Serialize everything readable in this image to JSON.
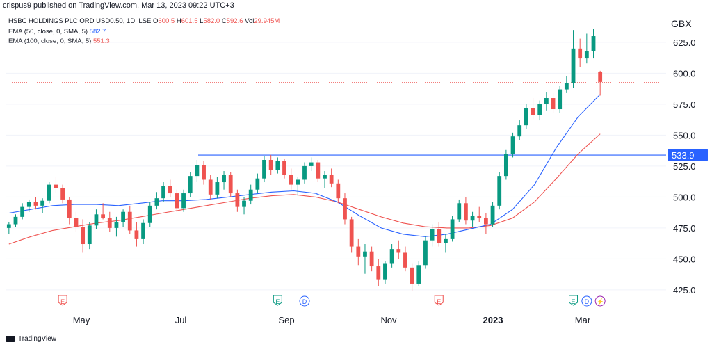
{
  "header": {
    "publish_text": "crispus9 published on TradingView.com, Mar 13, 2023 09:22 UTC+3"
  },
  "legend": {
    "title": "HSBC HOLDINGS PLC ORD USD0.50, 1D, LSE",
    "o_label": "O",
    "o": "600.5",
    "h_label": "H",
    "h": "601.5",
    "l_label": "L",
    "l": "582.0",
    "c_label": "C",
    "c": "592.6",
    "vol_label": "Vol",
    "vol": "29.945M",
    "ema50_label": "EMA (50, close, 0, SMA, 5)",
    "ema50_value": "582.7",
    "ema100_label": "EMA (100, close, 0, SMA, 5)",
    "ema100_value": "551.3"
  },
  "currency": "GBX",
  "footer": {
    "brand": "TradingView"
  },
  "colors": {
    "up": "#089981",
    "down": "#ef5350",
    "ema50": "#2962ff",
    "ema100": "#ef5350",
    "hline": "#2962ff"
  },
  "chart_data": {
    "type": "candlestick",
    "ylim": [
      412,
      648
    ],
    "y_ticks": [
      425,
      450,
      475,
      500,
      525,
      550,
      575,
      600,
      625
    ],
    "y_tick_labels": [
      "425.0",
      "450.0",
      "475.0",
      "500.0",
      "525.0",
      "550.0",
      "575.0",
      "600.0",
      "625.0"
    ],
    "x_labels": [
      {
        "label": "May",
        "bold": false
      },
      {
        "label": "Jul",
        "bold": false
      },
      {
        "label": "Sep",
        "bold": false
      },
      {
        "label": "Nov",
        "bold": false
      },
      {
        "label": "2023",
        "bold": true
      },
      {
        "label": "Mar",
        "bold": false
      }
    ],
    "horizontal_line": {
      "value": 533.9,
      "label": "533.9"
    },
    "last_price_line": 592.6,
    "ema50": [
      487,
      490,
      493,
      494,
      494,
      493,
      495,
      497,
      497,
      498,
      500,
      502,
      504,
      505,
      503,
      496,
      485,
      475,
      470,
      468,
      470,
      474,
      478,
      490,
      510,
      540,
      565,
      583
    ],
    "ema100": [
      462,
      468,
      473,
      476,
      479,
      481,
      484,
      487,
      490,
      493,
      496,
      499,
      501,
      502,
      500,
      496,
      490,
      484,
      479,
      476,
      475,
      475,
      477,
      483,
      496,
      515,
      535,
      551
    ],
    "ohlc": [
      [
        475,
        480,
        470,
        478
      ],
      [
        478,
        486,
        476,
        484
      ],
      [
        484,
        495,
        482,
        492
      ],
      [
        492,
        498,
        488,
        496
      ],
      [
        496,
        500,
        490,
        493
      ],
      [
        493,
        499,
        487,
        497
      ],
      [
        497,
        512,
        495,
        510
      ],
      [
        510,
        516,
        503,
        507
      ],
      [
        507,
        510,
        495,
        498
      ],
      [
        498,
        500,
        478,
        483
      ],
      [
        483,
        488,
        472,
        476
      ],
      [
        476,
        482,
        455,
        462
      ],
      [
        462,
        480,
        458,
        477
      ],
      [
        477,
        490,
        474,
        486
      ],
      [
        486,
        495,
        482,
        483
      ],
      [
        483,
        488,
        472,
        475
      ],
      [
        475,
        484,
        468,
        480
      ],
      [
        480,
        490,
        476,
        488
      ],
      [
        488,
        493,
        470,
        473
      ],
      [
        473,
        480,
        460,
        466
      ],
      [
        466,
        482,
        462,
        479
      ],
      [
        479,
        496,
        476,
        493
      ],
      [
        493,
        504,
        490,
        499
      ],
      [
        499,
        512,
        496,
        509
      ],
      [
        509,
        514,
        500,
        503
      ],
      [
        503,
        506,
        488,
        491
      ],
      [
        491,
        506,
        488,
        503
      ],
      [
        503,
        520,
        500,
        517
      ],
      [
        517,
        530,
        512,
        526
      ],
      [
        526,
        529,
        510,
        514
      ],
      [
        514,
        518,
        498,
        502
      ],
      [
        502,
        516,
        499,
        512
      ],
      [
        512,
        521,
        506,
        518
      ],
      [
        518,
        520,
        500,
        503
      ],
      [
        503,
        506,
        488,
        492
      ],
      [
        492,
        500,
        486,
        497
      ],
      [
        497,
        510,
        494,
        506
      ],
      [
        506,
        519,
        503,
        515
      ],
      [
        515,
        533,
        512,
        530
      ],
      [
        530,
        534,
        518,
        522
      ],
      [
        522,
        532,
        519,
        529
      ],
      [
        529,
        531,
        515,
        518
      ],
      [
        518,
        523,
        506,
        510
      ],
      [
        510,
        516,
        501,
        514
      ],
      [
        514,
        528,
        511,
        525
      ],
      [
        525,
        532,
        521,
        528
      ],
      [
        528,
        530,
        512,
        515
      ],
      [
        515,
        521,
        507,
        518
      ],
      [
        518,
        523,
        508,
        511
      ],
      [
        511,
        514,
        495,
        499
      ],
      [
        499,
        503,
        478,
        482
      ],
      [
        482,
        484,
        455,
        460
      ],
      [
        460,
        466,
        445,
        452
      ],
      [
        452,
        462,
        438,
        456
      ],
      [
        456,
        460,
        440,
        444
      ],
      [
        444,
        450,
        428,
        433
      ],
      [
        433,
        448,
        430,
        446
      ],
      [
        446,
        462,
        443,
        458
      ],
      [
        458,
        465,
        450,
        455
      ],
      [
        455,
        460,
        440,
        443
      ],
      [
        443,
        446,
        424,
        430
      ],
      [
        430,
        448,
        428,
        445
      ],
      [
        445,
        468,
        442,
        465
      ],
      [
        465,
        478,
        460,
        474
      ],
      [
        474,
        480,
        460,
        463
      ],
      [
        463,
        470,
        455,
        466
      ],
      [
        466,
        485,
        464,
        482
      ],
      [
        482,
        498,
        480,
        495
      ],
      [
        495,
        500,
        478,
        481
      ],
      [
        481,
        488,
        476,
        485
      ],
      [
        485,
        492,
        480,
        483
      ],
      [
        483,
        487,
        470,
        478
      ],
      [
        478,
        496,
        476,
        493
      ],
      [
        493,
        520,
        490,
        517
      ],
      [
        517,
        538,
        514,
        535
      ],
      [
        535,
        552,
        532,
        549
      ],
      [
        549,
        562,
        546,
        558
      ],
      [
        558,
        575,
        555,
        572
      ],
      [
        572,
        580,
        563,
        566
      ],
      [
        566,
        578,
        562,
        575
      ],
      [
        575,
        585,
        570,
        580
      ],
      [
        580,
        584,
        568,
        571
      ],
      [
        571,
        590,
        568,
        587
      ],
      [
        587,
        598,
        584,
        592
      ],
      [
        592,
        635,
        588,
        620
      ],
      [
        620,
        628,
        605,
        612
      ],
      [
        612,
        632,
        608,
        618
      ],
      [
        618,
        636,
        612,
        630
      ],
      [
        601,
        602,
        582,
        593
      ]
    ],
    "events": [
      {
        "type": "earnings",
        "symbol": "E",
        "x_index": 8
      },
      {
        "type": "earnings",
        "symbol": "E",
        "x_index": 40
      },
      {
        "type": "dividend",
        "symbol": "D",
        "x_index": 44
      },
      {
        "type": "earnings",
        "symbol": "E",
        "x_index": 64
      },
      {
        "type": "earnings",
        "symbol": "E",
        "x_index": 84
      },
      {
        "type": "dividend",
        "symbol": "D",
        "x_index": 86
      },
      {
        "type": "split",
        "symbol": "⚡",
        "x_index": 88
      }
    ]
  }
}
